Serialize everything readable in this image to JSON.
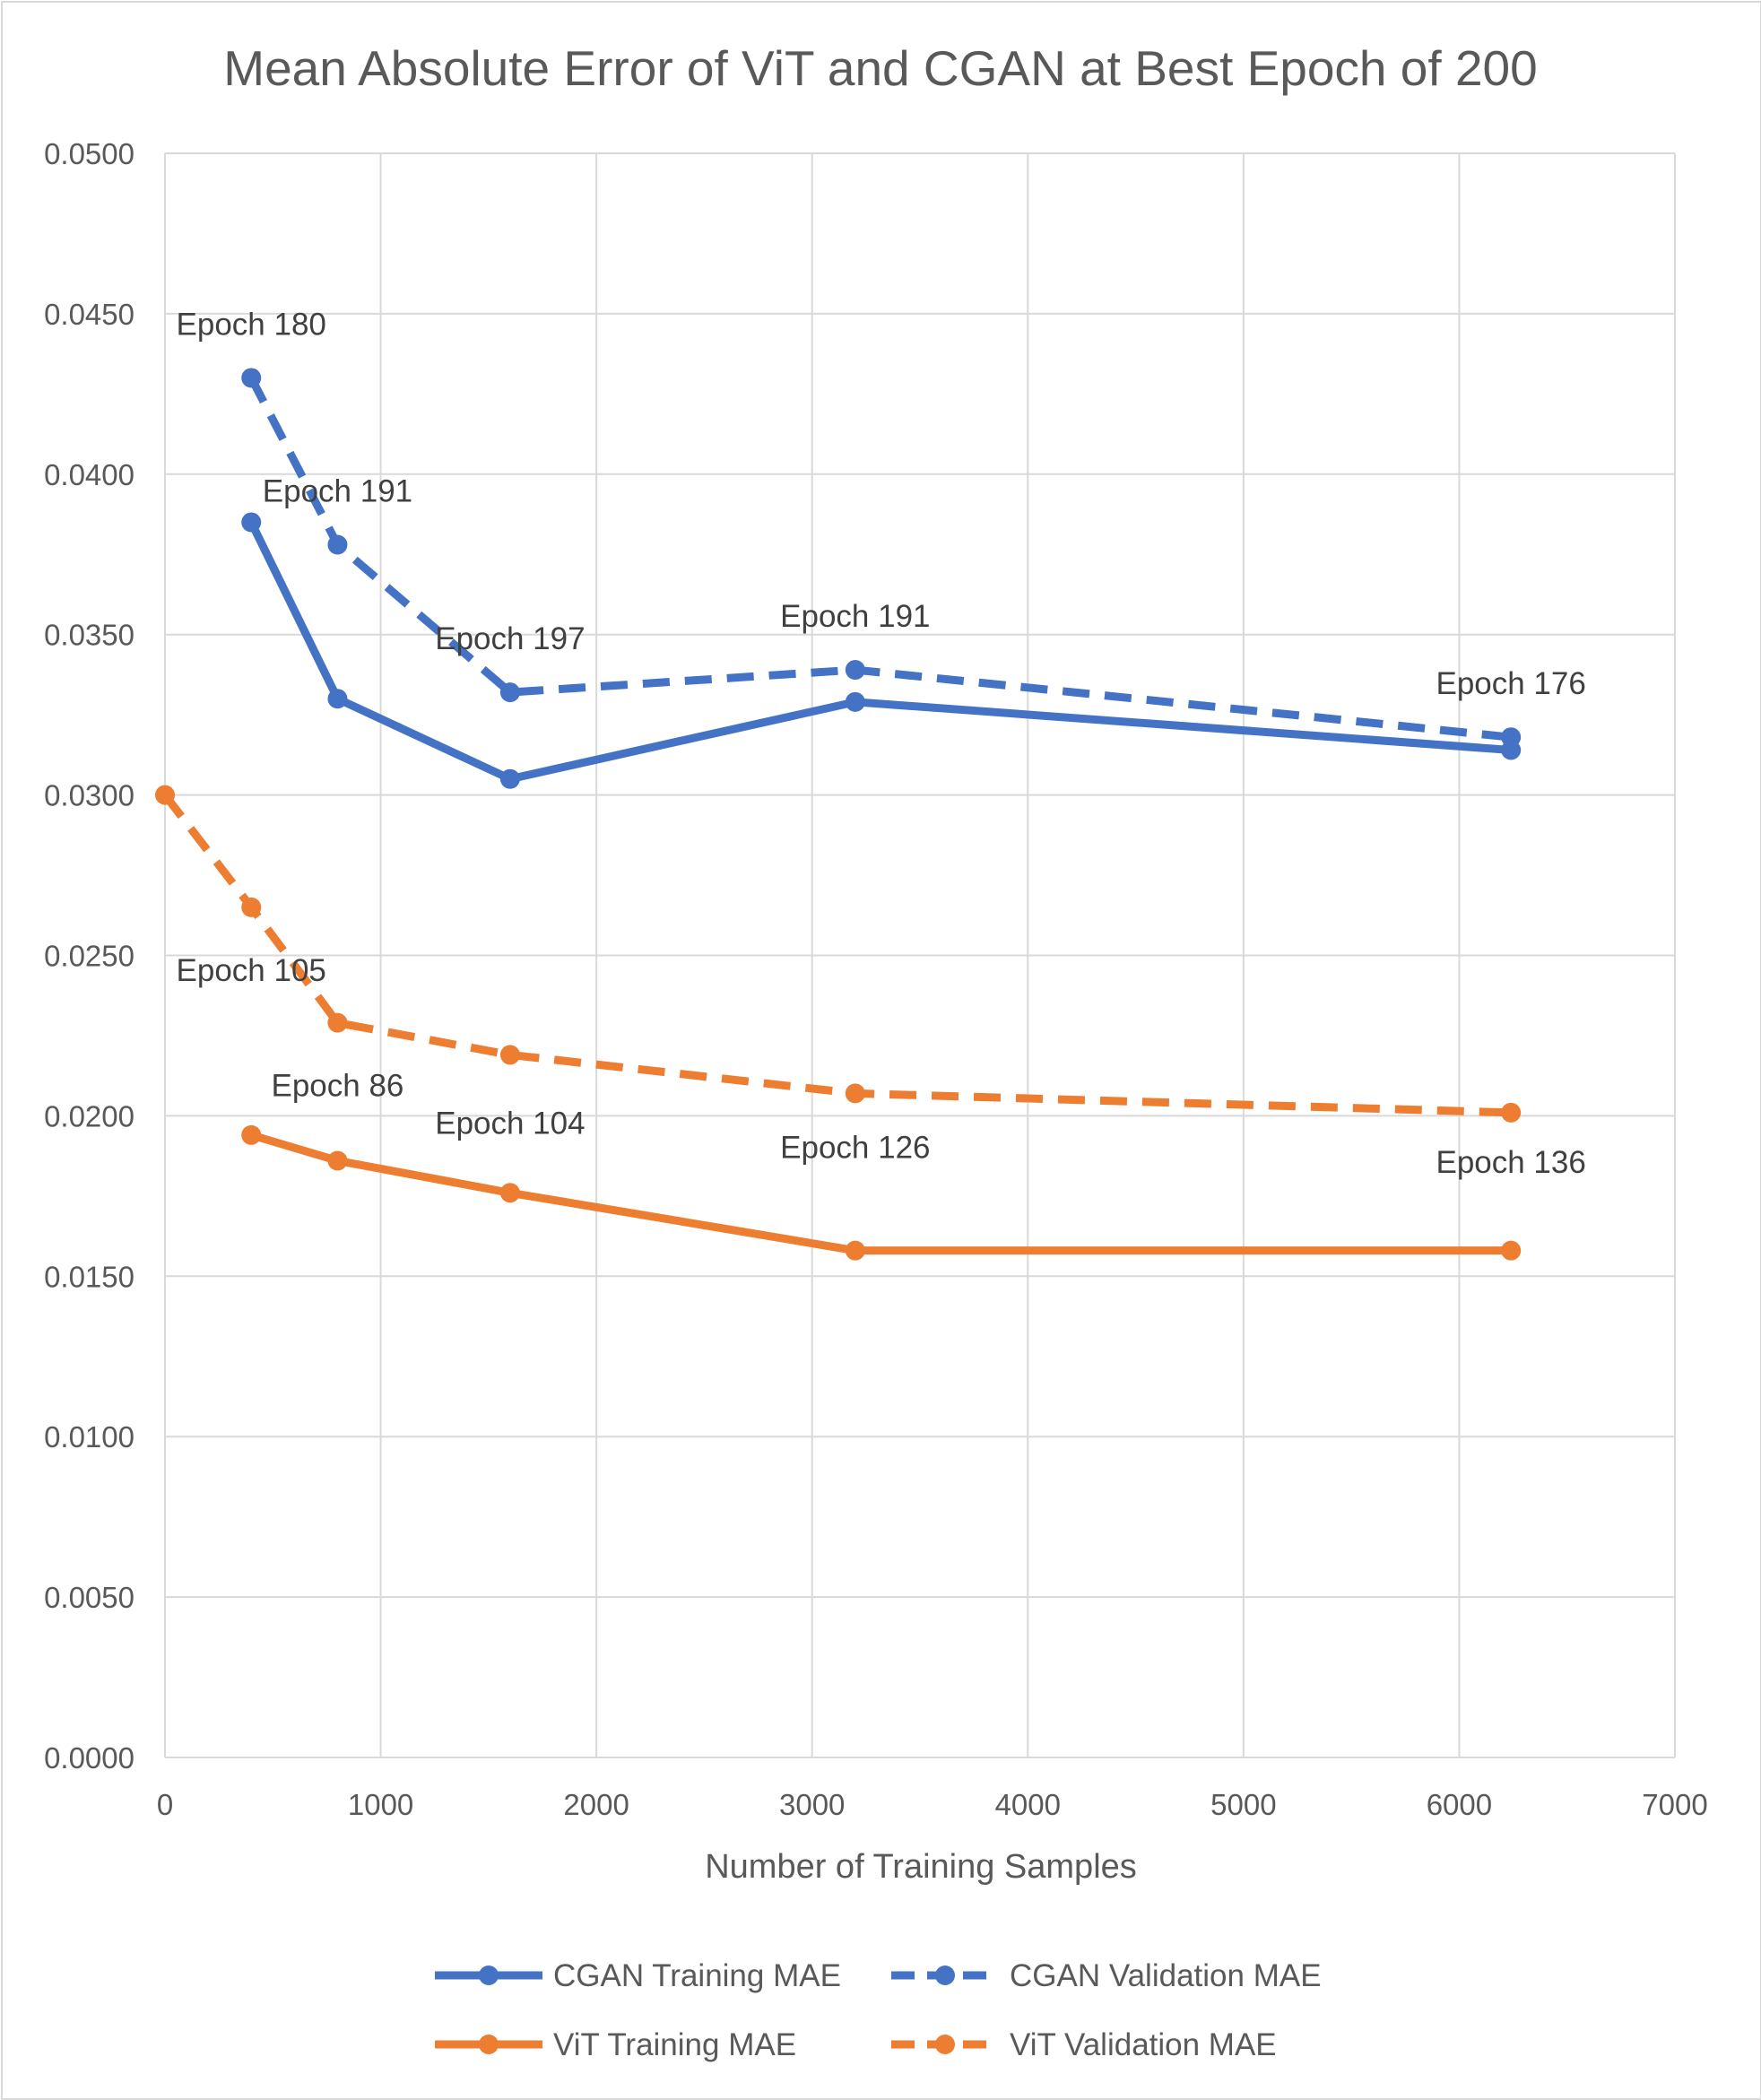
{
  "chart_data": {
    "type": "line",
    "title": "Mean Absolute Error of ViT and CGAN at Best Epoch of 200",
    "xlabel": "Number of Training Samples",
    "ylabel": "",
    "xlim": [
      0,
      7000
    ],
    "ylim": [
      0,
      0.05
    ],
    "xticks": [
      0,
      1000,
      2000,
      3000,
      4000,
      5000,
      6000,
      7000
    ],
    "xtick_labels": [
      "0",
      "1000",
      "2000",
      "3000",
      "4000",
      "5000",
      "6000",
      "7000"
    ],
    "yticks": [
      0,
      0.005,
      0.01,
      0.015,
      0.02,
      0.025,
      0.03,
      0.035,
      0.04,
      0.045,
      0.05
    ],
    "ytick_labels": [
      "0.0000",
      "0.0050",
      "0.0100",
      "0.0150",
      "0.0200",
      "0.0250",
      "0.0300",
      "0.0350",
      "0.0400",
      "0.0450",
      "0.0500"
    ],
    "grid": true,
    "legend_position": "bottom",
    "series": [
      {
        "name": "CGAN Training MAE",
        "color": "#4472c4",
        "dashed": false,
        "x": [
          400,
          800,
          1600,
          3200,
          6240
        ],
        "y": [
          0.0385,
          0.033,
          0.0305,
          0.0329,
          0.0314
        ]
      },
      {
        "name": "CGAN Validation MAE",
        "color": "#4472c4",
        "dashed": true,
        "x": [
          400,
          800,
          1600,
          3200,
          6240
        ],
        "y": [
          0.043,
          0.0378,
          0.0332,
          0.0339,
          0.0318
        ]
      },
      {
        "name": "ViT Training MAE",
        "color": "#ed7d31",
        "dashed": false,
        "x": [
          400,
          800,
          1600,
          3200,
          6240
        ],
        "y": [
          0.0194,
          0.0186,
          0.0176,
          0.0158,
          0.0158
        ]
      },
      {
        "name": "ViT Validation MAE",
        "color": "#ed7d31",
        "dashed": true,
        "x": [
          0,
          400,
          800,
          1600,
          3200,
          6240
        ],
        "y": [
          0.03,
          0.0265,
          0.0229,
          0.0219,
          0.0207,
          0.0201
        ]
      }
    ],
    "annotations": [
      {
        "text": "Epoch 180",
        "x": 400,
        "y": 0.043
      },
      {
        "text": "Epoch 191",
        "x": 800,
        "y": 0.0378
      },
      {
        "text": "Epoch 197",
        "x": 1600,
        "y": 0.0332
      },
      {
        "text": "Epoch 191",
        "x": 3200,
        "y": 0.0339
      },
      {
        "text": "Epoch 176",
        "x": 6240,
        "y": 0.0318
      },
      {
        "text": "Epoch 105",
        "x": 400,
        "y": 0.0265
      },
      {
        "text": "Epoch 86",
        "x": 800,
        "y": 0.0229
      },
      {
        "text": "Epoch 104",
        "x": 1600,
        "y": 0.0219
      },
      {
        "text": "Epoch 126",
        "x": 3200,
        "y": 0.0207
      },
      {
        "text": "Epoch 136",
        "x": 6240,
        "y": 0.0201
      }
    ]
  }
}
